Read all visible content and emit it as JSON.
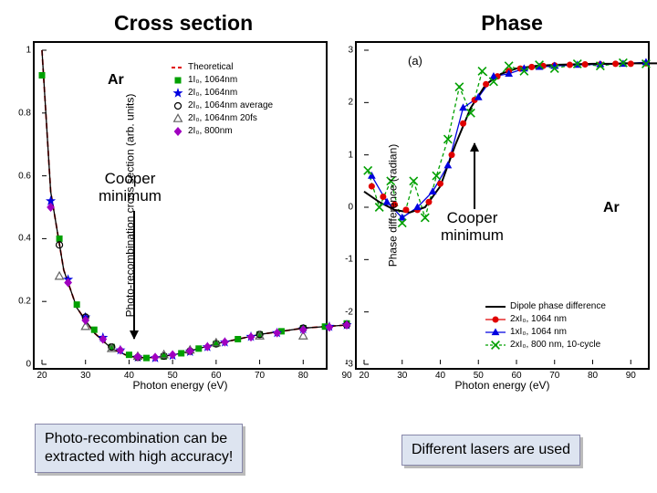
{
  "titles": {
    "left": "Cross section",
    "right": "Phase"
  },
  "left": {
    "element": "Ar",
    "xlabel": "Photon energy (eV)",
    "ylabel": "Photo-recombination cross section (arb. units)",
    "xlim": [
      20,
      90
    ],
    "ylim": [
      0,
      1
    ],
    "xticks": [
      20,
      30,
      40,
      50,
      60,
      70,
      80,
      90
    ],
    "yticks": [
      0,
      0.2,
      0.4,
      0.6,
      0.8,
      1
    ],
    "annotation": "Cooper\nminimum",
    "legend": [
      {
        "label": "Theoretical",
        "color": "#e00000",
        "dash": true,
        "mark": "line"
      },
      {
        "label": "1I₀, 1064nm",
        "color": "#00a000",
        "mark": "sq"
      },
      {
        "label": "2I₀, 1064nm",
        "color": "#0000e0",
        "mark": "star"
      },
      {
        "label": "2I₀, 1064nm average",
        "color": "#000000",
        "mark": "circ-open"
      },
      {
        "label": "2I₀, 1064nm 20fs",
        "color": "#606060",
        "mark": "tri-open"
      },
      {
        "label": "2I₀, 800nm",
        "color": "#a000c0",
        "mark": "diamond"
      }
    ],
    "theory_x": [
      20,
      22,
      25,
      28,
      32,
      36,
      40,
      44,
      48,
      52,
      56,
      60,
      65,
      70,
      75,
      80,
      85,
      90
    ],
    "theory_y": [
      1.0,
      0.55,
      0.3,
      0.18,
      0.1,
      0.05,
      0.025,
      0.02,
      0.025,
      0.035,
      0.05,
      0.065,
      0.08,
      0.095,
      0.105,
      0.115,
      0.12,
      0.125
    ],
    "series": {
      "green": {
        "color": "#00a000",
        "mark": "sq",
        "x": [
          20,
          24,
          28,
          32,
          36,
          40,
          44,
          48,
          52,
          56,
          60,
          65,
          70,
          75,
          80,
          85,
          90
        ],
        "y": [
          0.92,
          0.4,
          0.19,
          0.11,
          0.055,
          0.03,
          0.02,
          0.025,
          0.035,
          0.05,
          0.065,
          0.08,
          0.095,
          0.105,
          0.115,
          0.12,
          0.13
        ]
      },
      "blue": {
        "color": "#0000e0",
        "mark": "star",
        "x": [
          22,
          26,
          30,
          34,
          38,
          42,
          46,
          50,
          54,
          58,
          62,
          68,
          74,
          80,
          86,
          90
        ],
        "y": [
          0.52,
          0.27,
          0.15,
          0.085,
          0.045,
          0.022,
          0.02,
          0.028,
          0.04,
          0.055,
          0.07,
          0.088,
          0.1,
          0.112,
          0.12,
          0.125
        ]
      },
      "blackO": {
        "color": "#000000",
        "mark": "circ-open",
        "x": [
          24,
          30,
          36,
          42,
          48,
          54,
          60,
          70,
          80,
          90
        ],
        "y": [
          0.38,
          0.15,
          0.055,
          0.022,
          0.026,
          0.042,
          0.065,
          0.095,
          0.115,
          0.125
        ]
      },
      "triO": {
        "color": "#606060",
        "mark": "tri-open",
        "x": [
          24,
          30,
          36,
          42,
          48,
          54,
          60,
          70,
          80
        ],
        "y": [
          0.28,
          0.12,
          0.05,
          0.025,
          0.03,
          0.045,
          0.068,
          0.09,
          0.09
        ]
      },
      "purple": {
        "color": "#a000c0",
        "mark": "diamond",
        "x": [
          22,
          26,
          30,
          34,
          38,
          42,
          46,
          50,
          54,
          58,
          62,
          68,
          74,
          80,
          86,
          90
        ],
        "y": [
          0.5,
          0.26,
          0.14,
          0.08,
          0.045,
          0.024,
          0.022,
          0.03,
          0.042,
          0.056,
          0.071,
          0.087,
          0.1,
          0.11,
          0.118,
          0.125
        ]
      }
    }
  },
  "right": {
    "element": "Ar",
    "panel_label": "(a)",
    "xlabel": "Photon energy (eV)",
    "ylabel": "Phase difference (radian)",
    "xlim": [
      20,
      100
    ],
    "ylim": [
      -3,
      3
    ],
    "xticks": [
      20,
      30,
      40,
      50,
      60,
      70,
      80,
      90,
      100
    ],
    "yticks": [
      -3,
      -2,
      -1,
      0,
      1,
      2,
      3
    ],
    "annotation": "Cooper\nminimum",
    "legend": [
      {
        "label": "Dipole phase difference",
        "color": "#000000",
        "mark": "line"
      },
      {
        "label": "2xI₀, 1064 nm",
        "color": "#e00000",
        "mark": "circ"
      },
      {
        "label": "1xI₀, 1064 nm",
        "color": "#0000e0",
        "mark": "tri"
      },
      {
        "label": "2xI₀, 800 nm, 10-cycle",
        "color": "#00a000",
        "mark": "x"
      }
    ],
    "black_x": [
      20,
      24,
      28,
      32,
      36,
      40,
      44,
      48,
      52,
      56,
      60,
      65,
      70,
      75,
      80,
      85,
      90,
      95,
      100
    ],
    "black_y": [
      0.3,
      0.1,
      -0.05,
      -0.1,
      0.0,
      0.4,
      1.2,
      1.9,
      2.35,
      2.55,
      2.65,
      2.7,
      2.72,
      2.73,
      2.74,
      2.74,
      2.75,
      2.75,
      2.75
    ],
    "series": {
      "red": {
        "color": "#e00000",
        "mark": "circ",
        "x": [
          22,
          25,
          28,
          31,
          34,
          37,
          40,
          43,
          46,
          49,
          52,
          55,
          58,
          61,
          64,
          67,
          70,
          74,
          78,
          82,
          86,
          90,
          94,
          98
        ],
        "y": [
          0.4,
          0.2,
          0.05,
          -0.05,
          -0.05,
          0.1,
          0.45,
          1.0,
          1.6,
          2.05,
          2.35,
          2.5,
          2.6,
          2.65,
          2.68,
          2.7,
          2.71,
          2.72,
          2.73,
          2.73,
          2.74,
          2.74,
          2.75,
          2.8
        ]
      },
      "blue": {
        "color": "#0000e0",
        "mark": "tri",
        "x": [
          22,
          26,
          30,
          34,
          38,
          42,
          46,
          50,
          54,
          58,
          62,
          66,
          70,
          76,
          82,
          88,
          94
        ],
        "y": [
          0.6,
          0.1,
          -0.2,
          0.0,
          0.3,
          0.8,
          1.9,
          2.1,
          2.5,
          2.55,
          2.65,
          2.68,
          2.7,
          2.72,
          2.73,
          2.74,
          2.77
        ]
      },
      "green": {
        "color": "#00a000",
        "mark": "x",
        "x": [
          21,
          24,
          27,
          30,
          33,
          36,
          39,
          42,
          45,
          48,
          51,
          54,
          58,
          62,
          66,
          70,
          76,
          82,
          88,
          94
        ],
        "y": [
          0.7,
          0.0,
          0.5,
          -0.3,
          0.5,
          -0.2,
          0.6,
          1.3,
          2.3,
          1.8,
          2.6,
          2.4,
          2.7,
          2.6,
          2.72,
          2.65,
          2.74,
          2.7,
          2.76,
          2.74
        ]
      }
    }
  },
  "captions": {
    "left": "Photo-recombination can be\nextracted with high accuracy!",
    "right": "Different lasers are used"
  },
  "colors": {
    "border": "#000000",
    "bg": "#ffffff",
    "caption_bg": "#dde4f0",
    "caption_border": "#8888aa"
  }
}
